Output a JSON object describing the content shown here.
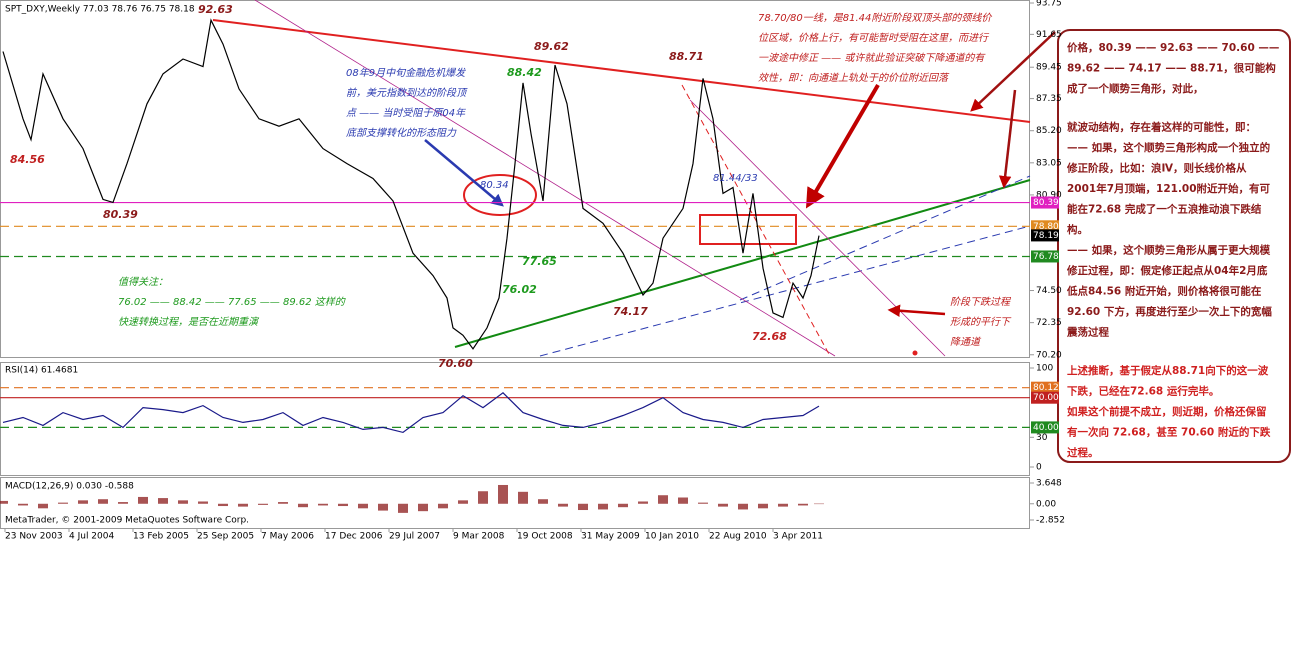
{
  "chart_data": {
    "type": "line",
    "title": "SPT_DXY,Weekly  77.03 78.76 76.75 78.18",
    "xlim": [
      -1.5,
      513.5
    ],
    "xticks": [
      {
        "value": 1,
        "label": "23 Nov 2003"
      },
      {
        "value": 33,
        "label": "4 Jul 2004"
      },
      {
        "value": 65,
        "label": "13 Feb 2005"
      },
      {
        "value": 97,
        "label": "25 Sep 2005"
      },
      {
        "value": 129,
        "label": "7 May 2006"
      },
      {
        "value": 161,
        "label": "17 Dec 2006"
      },
      {
        "value": 193,
        "label": "29 Jul 2007"
      },
      {
        "value": 225,
        "label": "9 Mar 2008"
      },
      {
        "value": 257,
        "label": "19 Oct 2008"
      },
      {
        "value": 289,
        "label": "31 May 2009"
      },
      {
        "value": 321,
        "label": "10 Jan 2010"
      },
      {
        "value": 353,
        "label": "22 Aug 2010"
      },
      {
        "value": 385,
        "label": "3 Apr 2011"
      }
    ],
    "ylim": [
      70.05,
      93.95
    ],
    "yticks": [
      93.75,
      91.65,
      89.45,
      87.35,
      {
        "value": 85.2,
        "label": "85.20"
      },
      83.05,
      {
        "value": 80.9,
        "label": "80.90"
      },
      {
        "value": 74.5,
        "label": "74.50"
      },
      72.35,
      {
        "value": 70.2,
        "label": "70.20"
      }
    ],
    "levels": [
      {
        "value": 80.39,
        "label": "80.39",
        "color": "#e020c0"
      },
      {
        "value": 78.8,
        "label": "78.80",
        "color": "#e08a20"
      },
      {
        "value": 78.19,
        "label": "78.19",
        "color": "#000000"
      },
      {
        "value": 76.78,
        "label": "76.78",
        "color": "#208a20"
      }
    ],
    "series": [
      {
        "name": "SPT_DXY",
        "color": "#000000",
        "x": [
          0,
          10,
          14,
          20,
          30,
          40,
          50,
          55,
          62,
          72,
          80,
          90,
          100,
          104,
          110,
          118,
          128,
          138,
          148,
          160,
          172,
          185,
          195,
          205,
          215,
          222,
          225,
          230,
          235,
          242,
          248,
          252,
          256,
          260,
          264,
          270,
          276,
          282,
          290,
          300,
          310,
          320,
          325,
          330,
          340,
          345,
          350,
          355,
          360,
          365,
          370,
          375,
          380,
          385,
          390,
          395,
          400,
          404,
          408
        ],
        "values": [
          90.5,
          86,
          84.6,
          89,
          86,
          84,
          80.6,
          80.4,
          83,
          87,
          89,
          90,
          89.5,
          92.6,
          91,
          88,
          86,
          85.5,
          86,
          84,
          83,
          82,
          80.5,
          77,
          75.5,
          74,
          72,
          71.5,
          70.6,
          72,
          74,
          78,
          83,
          88.4,
          85,
          80.5,
          89.6,
          87,
          80,
          79,
          77,
          74.2,
          75,
          78,
          80,
          83,
          88.7,
          86,
          81,
          81.4,
          77,
          81,
          76,
          73,
          72.7,
          75,
          74,
          75.5,
          78.18
        ]
      }
    ],
    "price_labels": [
      "92.63",
      "89.62",
      "88.71",
      "88.42",
      "84.56",
      "80.39",
      "80.34",
      "81.44/33",
      "77.65",
      "76.02",
      "74.17",
      "72.68",
      "70.60"
    ],
    "rsi": {
      "title": "RSI(14) 61.4681",
      "color": "#1a1a8a",
      "x": [
        0,
        10,
        20,
        30,
        40,
        50,
        60,
        70,
        80,
        90,
        100,
        110,
        120,
        130,
        140,
        150,
        160,
        170,
        180,
        190,
        200,
        210,
        220,
        230,
        240,
        250,
        260,
        270,
        280,
        290,
        300,
        310,
        320,
        330,
        340,
        350,
        360,
        370,
        380,
        390,
        400,
        408
      ],
      "values": [
        45,
        50,
        42,
        55,
        48,
        52,
        40,
        60,
        58,
        55,
        62,
        50,
        45,
        48,
        55,
        42,
        50,
        45,
        38,
        40,
        35,
        50,
        55,
        72,
        60,
        75,
        55,
        48,
        42,
        40,
        45,
        52,
        60,
        70,
        55,
        48,
        45,
        40,
        48,
        50,
        52,
        61.47
      ],
      "ylim": [
        0,
        100
      ],
      "yticks": [
        100,
        {
          "value": 30,
          "label": "30"
        },
        0
      ],
      "levels": [
        {
          "value": 80.12,
          "label": "80.12",
          "color": "#e07020"
        },
        {
          "value": 70,
          "label": "70.00",
          "color": "#c02020"
        },
        {
          "value": 40,
          "label": "40.00",
          "color": "#208a20"
        }
      ]
    },
    "macd": {
      "title": "MACD(12,26,9) 0.030 -0.588",
      "color": "#8b1a1a",
      "x": [
        0,
        10,
        20,
        30,
        40,
        50,
        60,
        70,
        80,
        90,
        100,
        110,
        120,
        130,
        140,
        150,
        160,
        170,
        180,
        190,
        200,
        210,
        220,
        230,
        240,
        250,
        260,
        270,
        280,
        290,
        300,
        310,
        320,
        330,
        340,
        350,
        360,
        370,
        380,
        390,
        400,
        408
      ],
      "values": [
        0.5,
        -0.3,
        -0.8,
        0.2,
        0.6,
        0.8,
        0.3,
        1.2,
        1.0,
        0.6,
        0.4,
        -0.4,
        -0.5,
        -0.2,
        0.3,
        -0.6,
        -0.3,
        -0.4,
        -0.8,
        -1.2,
        -1.6,
        -1.3,
        -0.8,
        0.6,
        2.2,
        3.3,
        2.1,
        0.8,
        -0.5,
        -1.1,
        -1.0,
        -0.6,
        0.4,
        1.5,
        1.1,
        0.2,
        -0.5,
        -1.0,
        -0.8,
        -0.5,
        -0.3,
        0.03
      ],
      "ylim": [
        -2.852,
        3.648
      ],
      "yticks": [
        3.648,
        {
          "value": 0,
          "label": "0.00"
        },
        -2.852
      ]
    },
    "copyright": "MetaTrader, © 2001-2009 MetaQuotes Software Corp.",
    "annotations": {
      "blue": [
        "08年9月中旬金融危机爆发",
        "前，美元指数到达的阶段顶",
        "点 —— 当时受阻于原04年",
        "底部支撑转化的形态阻力"
      ],
      "top": [
        "78.70/80一线，是81.44附近阶段双顶头部的颈线价",
        "位区域，价格上行，有可能暂时受阻在这里，而进行",
        "一波途中修正 —— 或许就此验证突破下降通道的有",
        "效性，即：向通道上轨处于的价位附近回落"
      ],
      "green": [
        "值得关注：",
        "76.02 —— 88.42 —— 77.65 —— 89.62 这样的",
        "快速转换过程，是否在近期重演"
      ],
      "channel": [
        "阶段下跌过程",
        "形成的平行下",
        "降通道"
      ]
    },
    "side_panel": {
      "paragraphs": [
        [
          "价格，80.39 —— 92.63 —— 70.60 ——",
          "89.62 —— 74.17 —— 88.71，很可能构",
          "成了一个顺势三角形，对此，"
        ],
        [
          "就波动结构，存在着这样的可能性，即：",
          "—— 如果，这个顺势三角形构成一个独立的",
          "修正阶段，比如：浪Ⅳ，则长线价格从",
          "2001年7月顶端，121.00附近开始，有可",
          "能在72.68 完成了一个五浪推动浪下跌结",
          "构。",
          "—— 如果，这个顺势三角形从属于更大规模",
          "修正过程，即：假定修正起点从04年2月底",
          "低点84.56 附近开始，则价格将很可能在",
          "92.60 下方，再度进行至少一次上下的宽幅",
          "震荡过程"
        ],
        [
          "上述推断，基于假定从88.71向下的这一波",
          "下跌，已经在72.68 运行完毕。",
          "如果这个前提不成立，则近期，价格还保留",
          "有一次向 72.68，甚至 70.60 附近的下跌",
          "过程。"
        ]
      ]
    }
  }
}
